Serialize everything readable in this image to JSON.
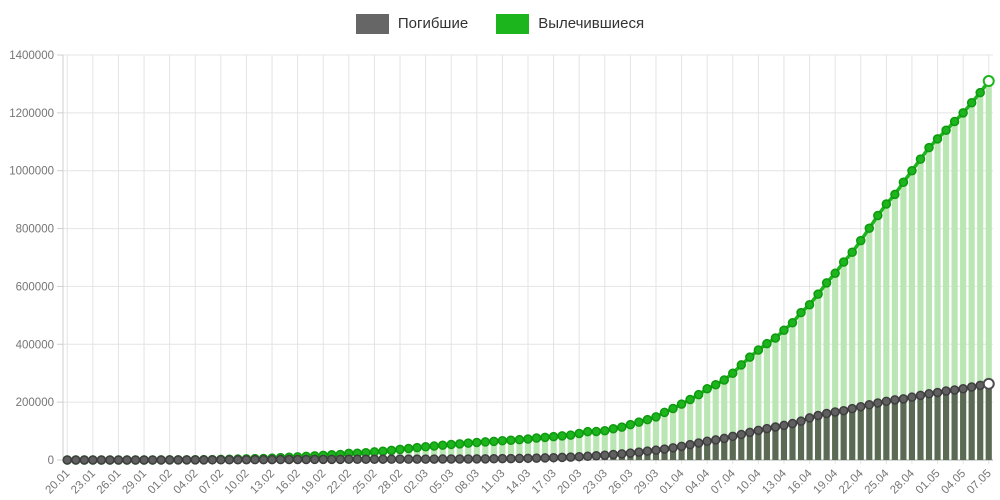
{
  "legend": {
    "items": [
      {
        "series": "deaths",
        "label": "Погибшие",
        "color": "#666666"
      },
      {
        "series": "recovered",
        "label": "Вылечившиеся",
        "color": "#1db51d"
      }
    ]
  },
  "chart_data": {
    "type": "bar",
    "overlay": "line-markers",
    "title": "",
    "xlabel": "",
    "ylabel": "",
    "ylim": [
      0,
      1400000
    ],
    "ytick_step": 200000,
    "xtick_every": 3,
    "grid": true,
    "legend_position": "top-center",
    "categories": [
      "20.01",
      "21.01",
      "22.01",
      "23.01",
      "24.01",
      "25.01",
      "26.01",
      "27.01",
      "28.01",
      "29.01",
      "30.01",
      "31.01",
      "01.02",
      "02.02",
      "03.02",
      "04.02",
      "05.02",
      "06.02",
      "07.02",
      "08.02",
      "09.02",
      "10.02",
      "11.02",
      "12.02",
      "13.02",
      "14.02",
      "15.02",
      "16.02",
      "17.02",
      "18.02",
      "19.02",
      "20.02",
      "21.02",
      "22.02",
      "23.02",
      "24.02",
      "25.02",
      "26.02",
      "27.02",
      "28.02",
      "29.02",
      "01.03",
      "02.03",
      "03.03",
      "04.03",
      "05.03",
      "06.03",
      "07.03",
      "08.03",
      "09.03",
      "10.03",
      "11.03",
      "12.03",
      "13.03",
      "14.03",
      "15.03",
      "16.03",
      "17.03",
      "18.03",
      "19.03",
      "20.03",
      "21.03",
      "22.03",
      "23.03",
      "24.03",
      "25.03",
      "26.03",
      "27.03",
      "28.03",
      "29.03",
      "30.03",
      "31.03",
      "01.04",
      "02.04",
      "03.04",
      "04.04",
      "05.04",
      "06.04",
      "07.04",
      "08.04",
      "09.04",
      "10.04",
      "11.04",
      "12.04",
      "13.04",
      "14.04",
      "15.04",
      "16.04",
      "17.04",
      "18.04",
      "19.04",
      "20.04",
      "21.04",
      "22.04",
      "23.04",
      "24.04",
      "25.04",
      "26.04",
      "27.04",
      "28.04",
      "29.04",
      "30.04",
      "01.05",
      "02.05",
      "03.05",
      "04.05",
      "05.05",
      "06.05",
      "07.05"
    ],
    "series": [
      {
        "key": "recovered",
        "name": "Вылечившиеся",
        "z": 0,
        "bar_color": "#b9e6b3",
        "line_color": "#1db51d",
        "line_width": 3.5,
        "marker_fill": "#1db51d",
        "marker_stroke": "#0e9a0e",
        "last_marker_open": true,
        "values": [
          25,
          25,
          28,
          30,
          36,
          39,
          52,
          61,
          107,
          126,
          143,
          222,
          284,
          472,
          623,
          852,
          1124,
          1487,
          2011,
          2616,
          3244,
          3946,
          4683,
          5150,
          6295,
          8058,
          9395,
          10865,
          12583,
          14352,
          16121,
          18177,
          18890,
          22886,
          23394,
          25227,
          27905,
          30384,
          33277,
          36711,
          39782,
          42716,
          45602,
          48228,
          51170,
          53796,
          55866,
          58358,
          60694,
          62494,
          64404,
          66708,
          68324,
          70251,
          72624,
          75937,
          78088,
          80840,
          83312,
          86032,
          91676,
          97882,
          98334,
          100958,
          108000,
          113787,
          122150,
          130915,
          139415,
          149082,
          164566,
          178100,
          193177,
          208949,
          225796,
          246152,
          260012,
          276515,
          300054,
          328661,
          355671,
          380326,
          402110,
          421722,
          448655,
          474261,
          509631,
          536580,
          573464,
          612275,
          645355,
          684379,
          718003,
          758437,
          801000,
          845000,
          885000,
          918000,
          960000,
          1000000,
          1040000,
          1080000,
          1110000,
          1140000,
          1170000,
          1200000,
          1235000,
          1270000,
          1310000
        ]
      },
      {
        "key": "deaths",
        "name": "Погибшие",
        "z": 1,
        "bar_color": "#5b6a54",
        "line_color": "#4d4d4d",
        "line_width": 3,
        "marker_fill": "#606060",
        "marker_stroke": "#3e3e3e",
        "last_marker_open": true,
        "values": [
          3,
          6,
          17,
          18,
          26,
          42,
          56,
          82,
          131,
          133,
          171,
          213,
          259,
          362,
          426,
          492,
          564,
          634,
          719,
          806,
          906,
          1013,
          1113,
          1118,
          1371,
          1523,
          1666,
          1770,
          1868,
          2009,
          2126,
          2247,
          2251,
          2458,
          2469,
          2629,
          2708,
          2770,
          2814,
          2872,
          2941,
          2996,
          3085,
          3160,
          3254,
          3348,
          3460,
          3558,
          3802,
          3988,
          4262,
          4615,
          4720,
          5404,
          5819,
          6470,
          7158,
          7978,
          8957,
          10031,
          11402,
          12784,
          14623,
          16514,
          18894,
          21181,
          23970,
          27198,
          30652,
          33925,
          37785,
          42107,
          47180,
          53167,
          58787,
          64606,
          69374,
          74565,
          81865,
          88338,
          95455,
          102525,
          108503,
          114091,
          119483,
          125984,
          134177,
          145451,
          153822,
          160685,
          165939,
          170452,
          177619,
          184235,
          190852,
          197245,
          202832,
          207973,
          211159,
          217153,
          223413,
          228809,
          233360,
          238619,
          242169,
          246254,
          252244,
          257818,
          263346
        ]
      }
    ],
    "axis_colors": {
      "grid": "#e4e4e4",
      "axis_line": "#cfcfcf",
      "zero_line": "#a8a8a8",
      "tick_label": "#757575"
    }
  }
}
